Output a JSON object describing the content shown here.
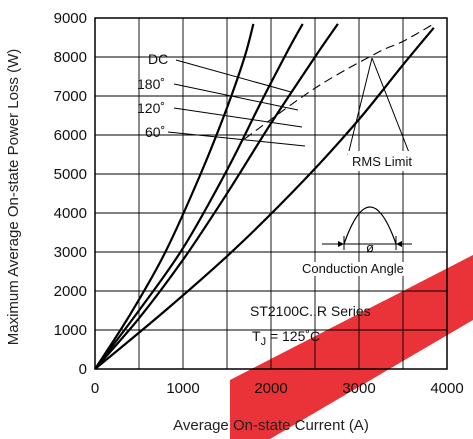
{
  "chart_data": {
    "type": "line",
    "xlabel": "Average On-state Current (A)",
    "ylabel": "Maximum Average On-state Power Loss (W)",
    "xlim": [
      0,
      4000
    ],
    "ylim": [
      0,
      9000
    ],
    "x_ticks": [
      "0",
      "1000",
      "2000",
      "3000",
      "4000"
    ],
    "y_ticks": [
      "0",
      "1000",
      "2000",
      "3000",
      "4000",
      "5000",
      "6000",
      "7000",
      "8000",
      "9000"
    ],
    "grid": true,
    "series": [
      {
        "name": "60˚",
        "points": [
          [
            0,
            0
          ],
          [
            400,
            1400
          ],
          [
            800,
            3000
          ],
          [
            1200,
            5000
          ],
          [
            1500,
            6700
          ],
          [
            1700,
            8000
          ],
          [
            1800,
            8850
          ]
        ]
      },
      {
        "name": "120˚",
        "points": [
          [
            0,
            0
          ],
          [
            500,
            1500
          ],
          [
            1000,
            3100
          ],
          [
            1500,
            5100
          ],
          [
            1900,
            6900
          ],
          [
            2200,
            8200
          ],
          [
            2360,
            8850
          ]
        ]
      },
      {
        "name": "180˚",
        "points": [
          [
            0,
            0
          ],
          [
            500,
            1300
          ],
          [
            1000,
            2800
          ],
          [
            1500,
            4500
          ],
          [
            2000,
            6300
          ],
          [
            2500,
            8000
          ],
          [
            2760,
            8850
          ]
        ]
      },
      {
        "name": "DC",
        "points": [
          [
            0,
            0
          ],
          [
            800,
            1500
          ],
          [
            1600,
            3100
          ],
          [
            2400,
            4900
          ],
          [
            3000,
            6400
          ],
          [
            3500,
            7800
          ],
          [
            3850,
            8750
          ]
        ]
      },
      {
        "name": "RMS Limit",
        "dashed": true,
        "points": [
          [
            1700,
            5900
          ],
          [
            2500,
            7200
          ],
          [
            3200,
            8100
          ],
          [
            3500,
            8400
          ],
          [
            3850,
            8850
          ]
        ]
      }
    ],
    "annotations": {
      "dc": "DC",
      "a180": "180˚",
      "a120": "120˚",
      "a60": "60˚",
      "rms": "RMS Limit",
      "phi": "ø",
      "conduction": "Conduction Angle",
      "series_name": "ST2100C..R Series",
      "tj_prefix": "T",
      "tj_sub": "J",
      "tj_suffix": " = 125˚C"
    },
    "colors": {
      "curve": "#000000",
      "grid": "#000000",
      "watermark": "#e8232a"
    }
  }
}
